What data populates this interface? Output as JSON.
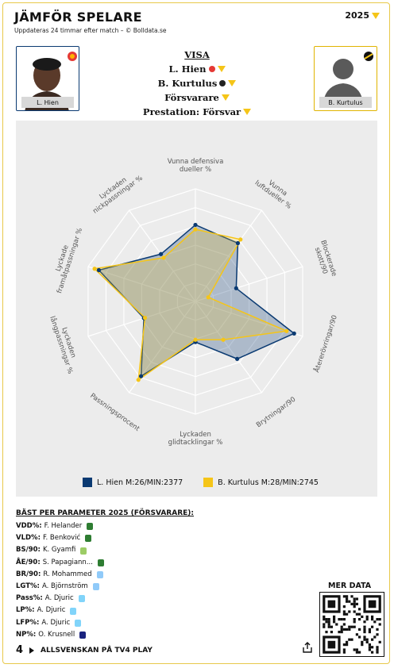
{
  "header": {
    "title": "JÄMFÖR SPELARE",
    "subtitle": "Uppdateras 24 timmar efter match – © Bolldata.se",
    "year": "2025"
  },
  "players": {
    "left_name": "L. Hien",
    "right_name": "B. Kurtulus"
  },
  "visa": {
    "heading": "VISA",
    "player1": "L. Hien",
    "player2": "B. Kurtulus",
    "position": "Försvarare",
    "prestation": "Prestation: Försvar"
  },
  "colors": {
    "player1": "#0a3a72",
    "player2": "#f5c518",
    "accent": "#f5c518"
  },
  "chart_data": {
    "type": "radar",
    "axes": [
      "Vunna defensiva dueller %",
      "Vunna luftdueller %",
      "Blockerade skott/90",
      "Återerövringar/90",
      "Brytningar/90",
      "Lyckaden glidtacklingar %",
      "Passningsprocent",
      "Lyckaden långpassningar %",
      "Lyckade framåtpassningar %",
      "Lyckaden nickpassningar %"
    ],
    "axis_label_lines": [
      [
        "Vunna defensiva",
        "dueller %"
      ],
      [
        "Vunna",
        "luftdueller %"
      ],
      [
        "Blockerade",
        "skott/90"
      ],
      [
        "Återerövringar/90"
      ],
      [
        "Brytningar/90"
      ],
      [
        "Lyckaden",
        "glidtacklingar %"
      ],
      [
        "Passningsprocent"
      ],
      [
        "Lyckaden",
        "långpassningar %"
      ],
      [
        "Lyckade",
        "framåtpassningar %"
      ],
      [
        "Lyckaden",
        "nickpassningar %"
      ]
    ],
    "range": [
      0,
      1
    ],
    "series": [
      {
        "name": "L. Hien M:26/MIN:2377",
        "values": [
          0.68,
          0.64,
          0.38,
          0.92,
          0.63,
          0.36,
          0.82,
          0.48,
          0.9,
          0.52
        ]
      },
      {
        "name": "B. Kurtulus M:28/MIN:2745",
        "values": [
          0.64,
          0.68,
          0.12,
          0.85,
          0.42,
          0.34,
          0.86,
          0.47,
          0.94,
          0.48
        ]
      }
    ]
  },
  "best": {
    "heading": "BÄST PER PARAMETER 2025 (FÖRSVARARE):",
    "rows": [
      {
        "key": "VDD%:",
        "name": "F. Helander",
        "color": "#2e7d32"
      },
      {
        "key": "VLD%:",
        "name": "F. Benković",
        "color": "#2e7d32"
      },
      {
        "key": "BS/90:",
        "name": "K. Gyamfi",
        "color": "#9ccc65"
      },
      {
        "key": "ÅE/90:",
        "name": "S. Papagiann...",
        "color": "#2e7d32"
      },
      {
        "key": "BR/90:",
        "name": "R. Mohammed",
        "color": "#90caf9"
      },
      {
        "key": "LGT%:",
        "name": "A. Björnström",
        "color": "#90caf9"
      },
      {
        "key": "Pass%:",
        "name": "A. Djuric",
        "color": "#81d4fa"
      },
      {
        "key": "LP%:",
        "name": "A. Djuric",
        "color": "#81d4fa"
      },
      {
        "key": "LFP%:",
        "name": "A. Djuric",
        "color": "#81d4fa"
      },
      {
        "key": "NP%:",
        "name": "O. Krusnell",
        "color": "#1a237e"
      }
    ]
  },
  "qr_label": "MER DATA",
  "footer": {
    "brand": "4",
    "text": "ALLSVENSKAN PÅ TV4 PLAY"
  }
}
